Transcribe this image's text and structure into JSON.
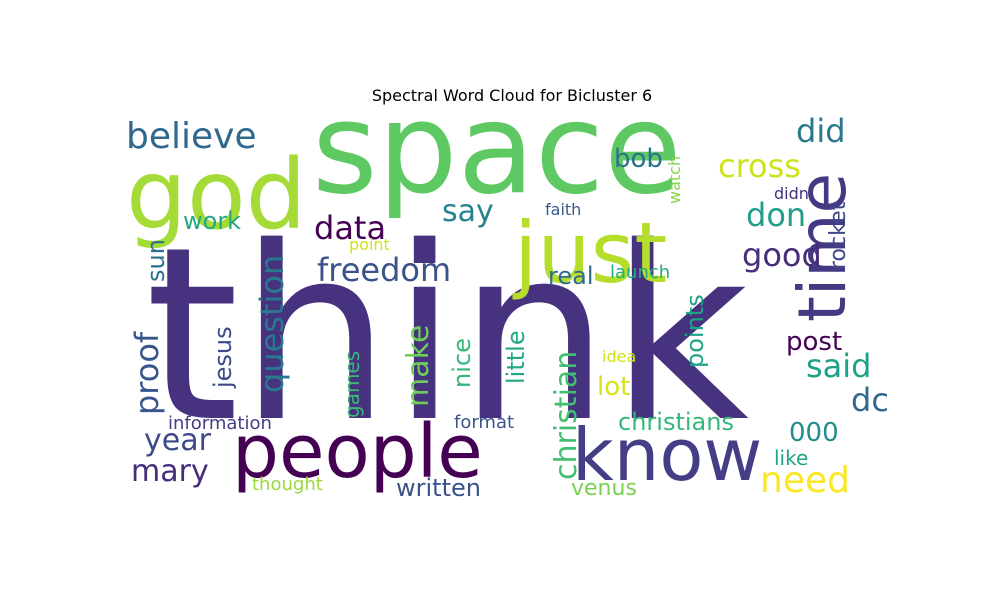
{
  "chart_data": {
    "type": "wordcloud",
    "title": "Spectral Word Cloud for Bicluster 6",
    "words": [
      {
        "text": "think",
        "color": "#46327e"
      },
      {
        "text": "space",
        "color": "#5ec962"
      },
      {
        "text": "god",
        "color": "#a5db36"
      },
      {
        "text": "just",
        "color": "#b5de2b"
      },
      {
        "text": "people",
        "color": "#440154"
      },
      {
        "text": "know",
        "color": "#433e85"
      },
      {
        "text": "time",
        "color": "#443983"
      },
      {
        "text": "believe",
        "color": "#31688e"
      },
      {
        "text": "did",
        "color": "#2a788e"
      },
      {
        "text": "cross",
        "color": "#d0e11c"
      },
      {
        "text": "bob",
        "color": "#2c728e"
      },
      {
        "text": "don",
        "color": "#1f9e89"
      },
      {
        "text": "say",
        "color": "#26828e"
      },
      {
        "text": "data",
        "color": "#440154"
      },
      {
        "text": "work",
        "color": "#22a884"
      },
      {
        "text": "freedom",
        "color": "#3b528b"
      },
      {
        "text": "good",
        "color": "#472d7b"
      },
      {
        "text": "question",
        "color": "#2a788e"
      },
      {
        "text": "proof",
        "color": "#39568c"
      },
      {
        "text": "sun",
        "color": "#2c728e"
      },
      {
        "text": "jesus",
        "color": "#3e4989"
      },
      {
        "text": "make",
        "color": "#6ece58"
      },
      {
        "text": "nice",
        "color": "#35b779"
      },
      {
        "text": "little",
        "color": "#22a884"
      },
      {
        "text": "christian",
        "color": "#42be71"
      },
      {
        "text": "points",
        "color": "#20a486"
      },
      {
        "text": "real",
        "color": "#2f6c8e"
      },
      {
        "text": "launch",
        "color": "#25ab82"
      },
      {
        "text": "rocket",
        "color": "#3e4989"
      },
      {
        "text": "watch",
        "color": "#86d549"
      },
      {
        "text": "faith",
        "color": "#38598c"
      },
      {
        "text": "didn",
        "color": "#46307e"
      },
      {
        "text": "point",
        "color": "#d2e21b"
      },
      {
        "text": "post",
        "color": "#440154"
      },
      {
        "text": "said",
        "color": "#1fa187"
      },
      {
        "text": "dc",
        "color": "#31688e"
      },
      {
        "text": "lot",
        "color": "#d8e219"
      },
      {
        "text": "idea",
        "color": "#d0e11c"
      },
      {
        "text": "year",
        "color": "#3e4989"
      },
      {
        "text": "mary",
        "color": "#472c7a"
      },
      {
        "text": "information",
        "color": "#433e85"
      },
      {
        "text": "games",
        "color": "#3aba76"
      },
      {
        "text": "format",
        "color": "#3b528b"
      },
      {
        "text": "christians",
        "color": "#35b779"
      },
      {
        "text": "000",
        "color": "#228d8d"
      },
      {
        "text": "like",
        "color": "#20a386"
      },
      {
        "text": "need",
        "color": "#fde725"
      },
      {
        "text": "thought",
        "color": "#9bd93c"
      },
      {
        "text": "written",
        "color": "#3b528b"
      },
      {
        "text": "venus",
        "color": "#7ad151"
      }
    ]
  }
}
